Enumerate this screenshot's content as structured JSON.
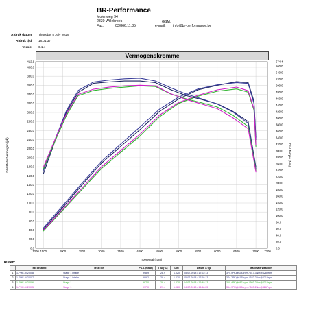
{
  "header": {
    "company": "BR-Performance",
    "address1": "Molenweg 94",
    "address2": "2830 Willebroek",
    "tel_label": "Tel.:",
    "tel": "03/866.11.35",
    "fax_label": "Fax:",
    "gsm_label": "GSM:",
    "email_label": "e-mail:",
    "email": "info@br-performance.be"
  },
  "meta": [
    {
      "key": "Afdruk datum",
      "value": "Thursday 5 July 2018"
    },
    {
      "key": "Afdruk tijd",
      "value": "18:01:37"
    },
    {
      "key": "Versie",
      "value": "6.1.4"
    }
  ],
  "chart_data": {
    "type": "line",
    "title": "Vermogenskromme",
    "xlabel": "Toerental (rpm)",
    "ylabel": "DIN Motor Vermogen (pk)",
    "y2label": "DIN Torque (Nm)",
    "xlim": [
      1300,
      7300
    ],
    "ylim": [
      0,
      412.1
    ],
    "y2lim": [
      0,
      574.4
    ],
    "x_ticks": [
      "1300",
      "1500",
      "2000",
      "2500",
      "3000",
      "3500",
      "4000",
      "4500",
      "5000",
      "5500",
      "6000",
      "6500",
      "7000",
      "7300"
    ],
    "y_ticks": [
      "412.1",
      "400.0",
      "380.0",
      "360.0",
      "340.0",
      "320.0",
      "300.0",
      "280.0",
      "260.0",
      "240.0",
      "220.0",
      "200.0",
      "180.0",
      "160.0",
      "140.0",
      "120.0",
      "100.0",
      "80.0",
      "60.0",
      "40.0",
      "20.0",
      "0.0"
    ],
    "y2_ticks": [
      "574.4",
      "560.0",
      "540.0",
      "520.0",
      "500.0",
      "480.0",
      "460.0",
      "440.0",
      "420.0",
      "400.0",
      "380.0",
      "360.0",
      "340.0",
      "320.0",
      "300.0",
      "280.0",
      "260.0",
      "240.0",
      "220.0",
      "200.0",
      "180.0",
      "160.0",
      "140.0",
      "120.0",
      "100.0",
      "80.0",
      "60.0",
      "40.0",
      "20.0",
      "0.0"
    ],
    "grid": true,
    "series": [
      {
        "color": "#1a2260",
        "kind": "power",
        "x": [
          1500,
          2000,
          2500,
          3000,
          3500,
          4000,
          4500,
          5000,
          5500,
          6000,
          6500,
          6800,
          6950,
          7000
        ],
        "y": [
          42,
          90,
          140,
          188,
          225,
          262,
          302,
          330,
          350,
          360,
          368,
          366,
          325,
          245
        ]
      },
      {
        "color": "#3b3f9a",
        "kind": "power",
        "x": [
          1500,
          2000,
          2500,
          3000,
          3500,
          4000,
          4500,
          5000,
          5500,
          6000,
          6500,
          6800,
          6950,
          7000
        ],
        "y": [
          45,
          94,
          144,
          192,
          230,
          268,
          307,
          334,
          352,
          361,
          366,
          364,
          320,
          240
        ]
      },
      {
        "color": "#2fb52f",
        "kind": "power",
        "x": [
          1500,
          2000,
          2500,
          3000,
          3500,
          4000,
          4500,
          5000,
          5500,
          6000,
          6500,
          6800,
          6950,
          7000
        ],
        "y": [
          38,
          84,
          130,
          176,
          212,
          248,
          290,
          320,
          336,
          347,
          352,
          345,
          305,
          225
        ]
      },
      {
        "color": "#d020c8",
        "kind": "power",
        "x": [
          1500,
          2000,
          2500,
          3000,
          3500,
          4000,
          4500,
          5000,
          5500,
          6000,
          6500,
          6800,
          6950,
          7000
        ],
        "y": [
          40,
          86,
          133,
          180,
          216,
          252,
          294,
          322,
          338,
          350,
          356,
          348,
          308,
          228
        ]
      },
      {
        "color": "#1a2260",
        "kind": "torque",
        "x": [
          1500,
          1800,
          2100,
          2400,
          2800,
          3200,
          3600,
          4000,
          4400,
          4800,
          5200,
          5600,
          6000,
          6400,
          6800,
          7000
        ],
        "y": [
          230,
          330,
          420,
          480,
          508,
          512,
          515,
          515,
          510,
          488,
          470,
          458,
          445,
          422,
          390,
          250
        ]
      },
      {
        "color": "#3b3f9a",
        "kind": "torque",
        "x": [
          1500,
          1800,
          2100,
          2400,
          2800,
          3200,
          3600,
          4000,
          4400,
          4800,
          5200,
          5600,
          6000,
          6400,
          6800,
          7000
        ],
        "y": [
          240,
          335,
          425,
          486,
          512,
          518,
          522,
          524,
          515,
          494,
          475,
          460,
          444,
          420,
          385,
          245
        ]
      },
      {
        "color": "#2fb52f",
        "kind": "torque",
        "x": [
          1500,
          1800,
          2100,
          2400,
          2800,
          3200,
          3600,
          4000,
          4400,
          4800,
          5200,
          5600,
          6000,
          6400,
          6800,
          7000
        ],
        "y": [
          245,
          330,
          410,
          470,
          486,
          492,
          496,
          500,
          498,
          475,
          460,
          448,
          435,
          410,
          375,
          240
        ]
      },
      {
        "color": "#d020c8",
        "kind": "torque",
        "x": [
          1500,
          1800,
          2100,
          2400,
          2800,
          3200,
          3600,
          4000,
          4400,
          4800,
          5200,
          5600,
          6000,
          6400,
          6800,
          7000
        ],
        "y": [
          250,
          335,
          415,
          474,
          490,
          496,
          500,
          502,
          500,
          476,
          458,
          444,
          430,
          402,
          368,
          235
        ]
      }
    ]
  },
  "tests": {
    "label": "Testen:",
    "columns": [
      "",
      "Test bestand",
      "Test Titel",
      "P Lu.(mBar)",
      "T lu.(°C)",
      "DIN",
      "Datum & tijd",
      "Maximale Waarden"
    ],
    "rows": [
      {
        "n": "1",
        "file": "1-PHE-942-008",
        "title": "Stage 1 intake",
        "p": "998.9",
        "t": "28.9",
        "din": "1.020",
        "date": "05-07-2018 / 17:22:13",
        "max": "374.4PK@6283rpm / 517.3Nm@4289rpm",
        "color": "#1a2260"
      },
      {
        "n": "2",
        "file": "1-PHE-942-007",
        "title": "Stage 1 intake",
        "p": "999.2",
        "t": "28.4",
        "din": "1.020",
        "date": "05-07-2018 / 17:58:13",
        "max": "374.7PK@6135rpm / 522.2Nm@4219rpm",
        "color": "#3b3f9a"
      },
      {
        "n": "3",
        "file": "1-PHE-942-006",
        "title": "Stage 1",
        "p": "997.0",
        "t": "29.4",
        "din": "1.020",
        "date": "04-07-2018 / 16:48:13",
        "max": "360.4PK@6821rpm / 503.2Nm@4315rpm",
        "color": "#2fb52f"
      },
      {
        "n": "4",
        "file": "1-PHE-942-005",
        "title": "Stage 1",
        "p": "997.0",
        "t": "29.4",
        "din": "1.020",
        "date": "04-07-2018 / 16:48:25",
        "max": "364.9PK@6586rpm / 503.2Nm@4267rpm",
        "color": "#d020c8"
      }
    ]
  }
}
